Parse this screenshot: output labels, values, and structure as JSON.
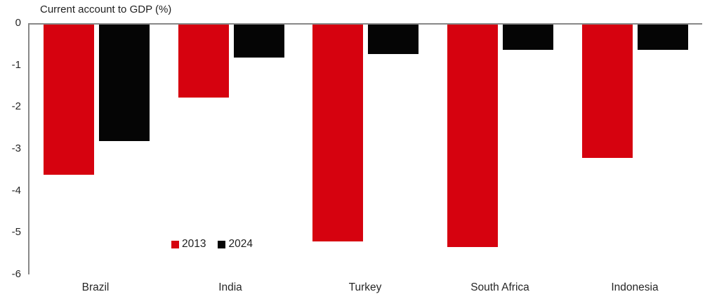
{
  "chart_data": {
    "type": "bar",
    "title": "Current account to GDP (%)",
    "categories": [
      "Brazil",
      "India",
      "Turkey",
      "South Africa",
      "Indonesia"
    ],
    "series": [
      {
        "name": "2013",
        "color": "#d6020f",
        "values": [
          -3.6,
          -1.75,
          -5.2,
          -5.35,
          -3.2
        ]
      },
      {
        "name": "2024",
        "color": "#050505",
        "values": [
          -2.8,
          -0.8,
          -0.7,
          -0.6,
          -0.6
        ]
      }
    ],
    "xlabel": "",
    "ylabel": "",
    "ylim": [
      0,
      -6
    ],
    "yticks": [
      0,
      -1,
      -2,
      -3,
      -4,
      -5,
      -6
    ],
    "grid": false,
    "legend_position": "inside-bottom-left"
  },
  "colors": {
    "axis": "#888888",
    "text": "#262626",
    "background": "#ffffff"
  }
}
